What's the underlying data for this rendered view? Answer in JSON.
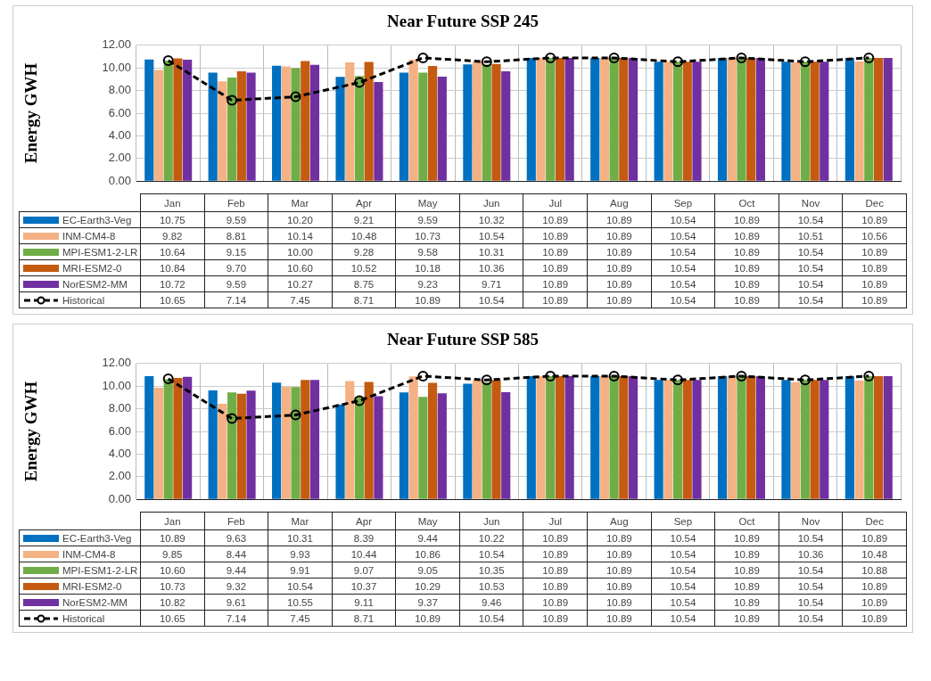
{
  "chart_data": [
    {
      "type": "bar",
      "title": "Near Future SSP 245",
      "ylabel": "Energy GWH",
      "categories": [
        "Jan",
        "Feb",
        "Mar",
        "Apr",
        "May",
        "Jun",
        "Jul",
        "Aug",
        "Sep",
        "Oct",
        "Nov",
        "Dec"
      ],
      "series": [
        {
          "name": "EC-Earth3-Veg",
          "color": "#0070c0",
          "values": [
            10.75,
            9.59,
            10.2,
            9.21,
            9.59,
            10.32,
            10.89,
            10.89,
            10.54,
            10.89,
            10.54,
            10.89
          ],
          "value_labels": [
            "10.75",
            "9.59",
            "10.20",
            "9.21",
            "9.59",
            "10.32",
            "10.89",
            "10.89",
            "10.54",
            "10.89",
            "10.54",
            "10.89"
          ]
        },
        {
          "name": "INM-CM4-8",
          "color": "#f4b183",
          "values": [
            9.82,
            8.81,
            10.14,
            10.48,
            10.73,
            10.54,
            10.89,
            10.89,
            10.54,
            10.89,
            10.51,
            10.56
          ],
          "value_labels": [
            "9.82",
            "8.81",
            "10.14",
            "10.48",
            "10.73",
            "10.54",
            "10.89",
            "10.89",
            "10.54",
            "10.89",
            "10.51",
            "10.56"
          ]
        },
        {
          "name": "MPI-ESM1-2-LR",
          "color": "#70ad47",
          "values": [
            10.64,
            9.15,
            10,
            9.28,
            9.58,
            10.31,
            10.89,
            10.89,
            10.54,
            10.89,
            10.54,
            10.89
          ],
          "value_labels": [
            "10.64",
            "9.15",
            "10.00",
            "9.28",
            "9.58",
            "10.31",
            "10.89",
            "10.89",
            "10.54",
            "10.89",
            "10.54",
            "10.89"
          ]
        },
        {
          "name": "MRI-ESM2-0",
          "color": "#c55a11",
          "values": [
            10.84,
            9.7,
            10.6,
            10.52,
            10.18,
            10.36,
            10.89,
            10.89,
            10.54,
            10.89,
            10.54,
            10.89
          ],
          "value_labels": [
            "10.84",
            "9.70",
            "10.60",
            "10.52",
            "10.18",
            "10.36",
            "10.89",
            "10.89",
            "10.54",
            "10.89",
            "10.54",
            "10.89"
          ]
        },
        {
          "name": "NorESM2-MM",
          "color": "#7030a0",
          "values": [
            10.72,
            9.59,
            10.27,
            8.75,
            9.23,
            9.71,
            10.89,
            10.89,
            10.54,
            10.89,
            10.54,
            10.89
          ],
          "value_labels": [
            "10.72",
            "9.59",
            "10.27",
            "8.75",
            "9.23",
            "9.71",
            "10.89",
            "10.89",
            "10.54",
            "10.89",
            "10.54",
            "10.89"
          ]
        },
        {
          "name": "Historical",
          "color": "#000000",
          "type": "line",
          "marker": "circle",
          "line_style": "dashed",
          "values": [
            10.65,
            7.14,
            7.45,
            8.71,
            10.89,
            10.54,
            10.89,
            10.89,
            10.54,
            10.89,
            10.54,
            10.89
          ],
          "value_labels": [
            "10.65",
            "7.14",
            "7.45",
            "8.71",
            "10.89",
            "10.54",
            "10.89",
            "10.89",
            "10.54",
            "10.89",
            "10.54",
            "10.89"
          ]
        }
      ],
      "ylim": [
        0,
        12
      ],
      "yticks": [
        {
          "value": 0,
          "label": "0.00"
        },
        {
          "value": 2,
          "label": "2.00"
        },
        {
          "value": 4,
          "label": "4.00"
        },
        {
          "value": 6,
          "label": "6.00"
        },
        {
          "value": 8,
          "label": "8.00"
        },
        {
          "value": 10,
          "label": "10.00"
        },
        {
          "value": 12,
          "label": "12.00"
        }
      ],
      "grid": true,
      "legend": "bottom"
    },
    {
      "type": "bar",
      "title": "Near Future SSP 585",
      "ylabel": "Energy GWH",
      "categories": [
        "Jan",
        "Feb",
        "Mar",
        "Apr",
        "May",
        "Jun",
        "Jul",
        "Aug",
        "Sep",
        "Oct",
        "Nov",
        "Dec"
      ],
      "series": [
        {
          "name": "EC-Earth3-Veg",
          "color": "#0070c0",
          "values": [
            10.89,
            9.63,
            10.31,
            8.39,
            9.44,
            10.22,
            10.89,
            10.89,
            10.54,
            10.89,
            10.54,
            10.89
          ],
          "value_labels": [
            "10.89",
            "9.63",
            "10.31",
            "8.39",
            "9.44",
            "10.22",
            "10.89",
            "10.89",
            "10.54",
            "10.89",
            "10.54",
            "10.89"
          ]
        },
        {
          "name": "INM-CM4-8",
          "color": "#f4b183",
          "values": [
            9.85,
            8.44,
            9.93,
            10.44,
            10.86,
            10.54,
            10.89,
            10.89,
            10.54,
            10.89,
            10.36,
            10.48
          ],
          "value_labels": [
            "9.85",
            "8.44",
            "9.93",
            "10.44",
            "10.86",
            "10.54",
            "10.89",
            "10.89",
            "10.54",
            "10.89",
            "10.36",
            "10.48"
          ]
        },
        {
          "name": "MPI-ESM1-2-LR",
          "color": "#70ad47",
          "values": [
            10.6,
            9.44,
            9.91,
            9.07,
            9.05,
            10.35,
            10.89,
            10.89,
            10.54,
            10.89,
            10.54,
            10.88
          ],
          "value_labels": [
            "10.60",
            "9.44",
            "9.91",
            "9.07",
            "9.05",
            "10.35",
            "10.89",
            "10.89",
            "10.54",
            "10.89",
            "10.54",
            "10.88"
          ]
        },
        {
          "name": "MRI-ESM2-0",
          "color": "#c55a11",
          "values": [
            10.73,
            9.32,
            10.54,
            10.37,
            10.29,
            10.53,
            10.89,
            10.89,
            10.54,
            10.89,
            10.54,
            10.89
          ],
          "value_labels": [
            "10.73",
            "9.32",
            "10.54",
            "10.37",
            "10.29",
            "10.53",
            "10.89",
            "10.89",
            "10.54",
            "10.89",
            "10.54",
            "10.89"
          ]
        },
        {
          "name": "NorESM2-MM",
          "color": "#7030a0",
          "values": [
            10.82,
            9.61,
            10.55,
            9.11,
            9.37,
            9.46,
            10.89,
            10.89,
            10.54,
            10.89,
            10.54,
            10.89
          ],
          "value_labels": [
            "10.82",
            "9.61",
            "10.55",
            "9.11",
            "9.37",
            "9.46",
            "10.89",
            "10.89",
            "10.54",
            "10.89",
            "10.54",
            "10.89"
          ]
        },
        {
          "name": "Historical",
          "color": "#000000",
          "type": "line",
          "marker": "circle",
          "line_style": "dashed",
          "values": [
            10.65,
            7.14,
            7.45,
            8.71,
            10.89,
            10.54,
            10.89,
            10.89,
            10.54,
            10.89,
            10.54,
            10.89
          ],
          "value_labels": [
            "10.65",
            "7.14",
            "7.45",
            "8.71",
            "10.89",
            "10.54",
            "10.89",
            "10.89",
            "10.54",
            "10.89",
            "10.54",
            "10.89"
          ]
        }
      ],
      "ylim": [
        0,
        12
      ],
      "yticks": [
        {
          "value": 0,
          "label": "0.00"
        },
        {
          "value": 2,
          "label": "2.00"
        },
        {
          "value": 4,
          "label": "4.00"
        },
        {
          "value": 6,
          "label": "6.00"
        },
        {
          "value": 8,
          "label": "8.00"
        },
        {
          "value": 10,
          "label": "10.00"
        },
        {
          "value": 12,
          "label": "12.00"
        }
      ],
      "grid": true,
      "legend": "bottom"
    }
  ]
}
